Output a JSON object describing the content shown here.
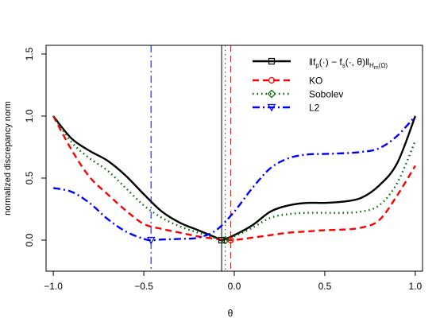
{
  "chart_data": {
    "type": "line",
    "xlabel": "θ",
    "ylabel": "normalized discrepancy norm",
    "xlim": [
      -1.04,
      1.04
    ],
    "ylim": [
      -0.25,
      1.57
    ],
    "x_ticks": [
      -1.0,
      -0.5,
      0.0,
      0.5,
      1.0
    ],
    "x_tick_labels": [
      "−1.0",
      "−0.5",
      "0.0",
      "0.5",
      "1.0"
    ],
    "y_ticks": [
      0.0,
      0.5,
      1.0,
      1.5
    ],
    "y_tick_labels": [
      "0.0",
      "0.5",
      "1.0",
      "1.5"
    ],
    "grid": false,
    "legend_position": "top-right",
    "series": [
      {
        "name": "‖f_p(·) − f_s(·, θ)‖_{H_m(Ω)}",
        "color": "#000000",
        "dash": "solid",
        "marker": "square",
        "min_theta": -0.07,
        "x": [
          -1.0,
          -0.9,
          -0.8,
          -0.7,
          -0.6,
          -0.5,
          -0.4,
          -0.3,
          -0.2,
          -0.1,
          -0.07,
          0.0,
          0.1,
          0.2,
          0.3,
          0.4,
          0.5,
          0.6,
          0.7,
          0.8,
          0.9,
          1.0
        ],
        "y": [
          1.0,
          0.82,
          0.72,
          0.64,
          0.52,
          0.37,
          0.23,
          0.14,
          0.08,
          0.02,
          0.0,
          0.04,
          0.12,
          0.23,
          0.28,
          0.3,
          0.3,
          0.31,
          0.34,
          0.44,
          0.62,
          1.0
        ]
      },
      {
        "name": "KO",
        "color": "#ff0000",
        "dash": "dashed",
        "marker": "circle",
        "min_theta": -0.02,
        "x": [
          -1.0,
          -0.9,
          -0.8,
          -0.7,
          -0.6,
          -0.5,
          -0.4,
          -0.3,
          -0.2,
          -0.1,
          -0.02,
          0.0,
          0.1,
          0.2,
          0.3,
          0.4,
          0.5,
          0.6,
          0.7,
          0.8,
          0.9,
          1.0
        ],
        "y": [
          1.0,
          0.73,
          0.51,
          0.37,
          0.24,
          0.13,
          0.09,
          0.06,
          0.03,
          0.01,
          0.0,
          0.0,
          0.02,
          0.04,
          0.06,
          0.07,
          0.08,
          0.085,
          0.1,
          0.16,
          0.36,
          0.6
        ]
      },
      {
        "name": "Sobolev",
        "color": "#006400",
        "dash": "dotted",
        "marker": "diamond",
        "min_theta": -0.05,
        "x": [
          -1.0,
          -0.9,
          -0.8,
          -0.7,
          -0.6,
          -0.5,
          -0.4,
          -0.3,
          -0.2,
          -0.1,
          -0.05,
          0.0,
          0.1,
          0.2,
          0.3,
          0.4,
          0.5,
          0.6,
          0.7,
          0.8,
          0.9,
          1.0
        ],
        "y": [
          1.0,
          0.79,
          0.66,
          0.56,
          0.42,
          0.28,
          0.18,
          0.11,
          0.06,
          0.015,
          0.0,
          0.03,
          0.1,
          0.18,
          0.21,
          0.22,
          0.22,
          0.22,
          0.23,
          0.28,
          0.46,
          0.8
        ]
      },
      {
        "name": "L2",
        "color": "#0000ff",
        "dash": "dashdot",
        "marker": "triangle-down",
        "min_theta": -0.46,
        "x": [
          -1.0,
          -0.9,
          -0.8,
          -0.7,
          -0.6,
          -0.5,
          -0.46,
          -0.4,
          -0.3,
          -0.2,
          -0.1,
          0.0,
          0.1,
          0.2,
          0.3,
          0.4,
          0.5,
          0.6,
          0.7,
          0.8,
          0.9,
          1.0
        ],
        "y": [
          0.42,
          0.39,
          0.3,
          0.17,
          0.07,
          0.01,
          0.0,
          0.005,
          0.01,
          0.02,
          0.08,
          0.23,
          0.42,
          0.58,
          0.66,
          0.69,
          0.695,
          0.7,
          0.71,
          0.74,
          0.84,
          1.0
        ]
      }
    ]
  }
}
